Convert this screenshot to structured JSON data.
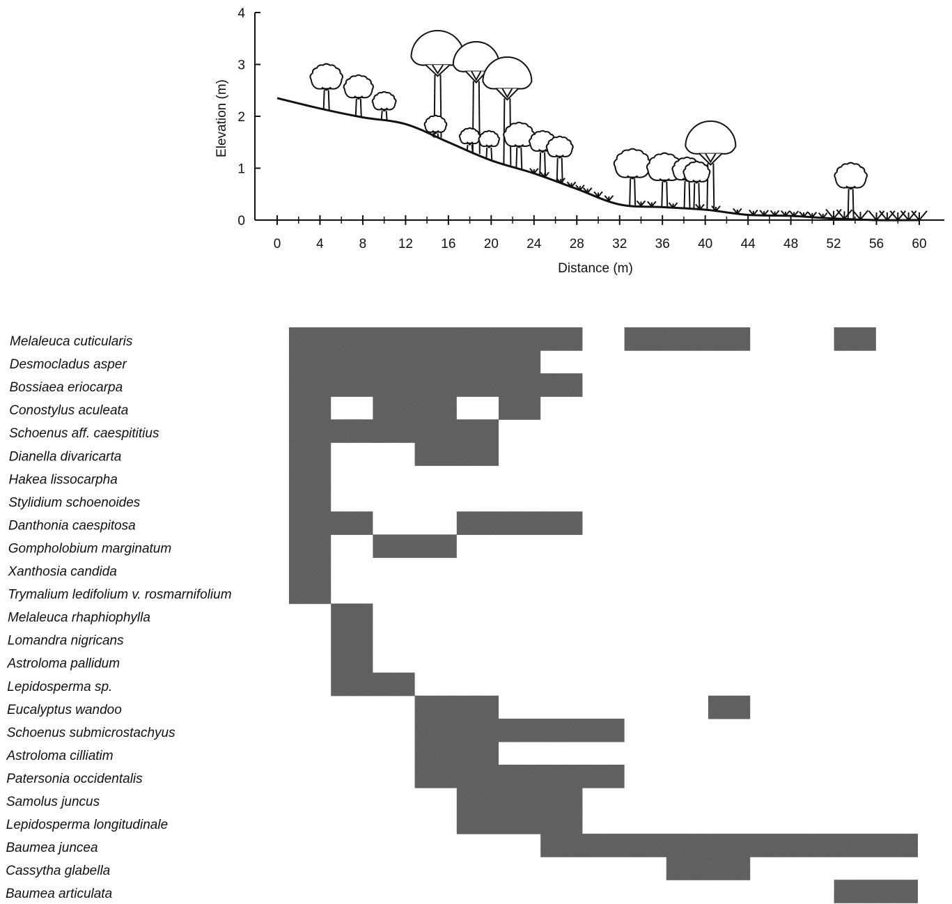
{
  "chart_data": {
    "type": "diagram",
    "profile": {
      "xlabel": "Distance (m)",
      "ylabel": "Elevation (m)",
      "xlim": [
        0,
        60
      ],
      "ylim": [
        0,
        4
      ],
      "x_ticks": [
        0,
        4,
        8,
        12,
        16,
        20,
        24,
        28,
        32,
        36,
        40,
        44,
        48,
        52,
        56,
        60
      ],
      "y_ticks": [
        0,
        1,
        2,
        3,
        4
      ],
      "ground_profile": [
        {
          "x": 0,
          "y": 2.35
        },
        {
          "x": 4,
          "y": 2.15
        },
        {
          "x": 8,
          "y": 1.98
        },
        {
          "x": 12,
          "y": 1.85
        },
        {
          "x": 16,
          "y": 1.5
        },
        {
          "x": 20,
          "y": 1.15
        },
        {
          "x": 24,
          "y": 0.9
        },
        {
          "x": 28,
          "y": 0.6
        },
        {
          "x": 32,
          "y": 0.3
        },
        {
          "x": 36,
          "y": 0.25
        },
        {
          "x": 40,
          "y": 0.2
        },
        {
          "x": 44,
          "y": 0.1
        },
        {
          "x": 48,
          "y": 0.08
        },
        {
          "x": 52,
          "y": 0.03
        },
        {
          "x": 56,
          "y": 0.0
        },
        {
          "x": 60,
          "y": 0.0
        }
      ]
    },
    "occurrence_grid": {
      "species": [
        {
          "name": "Melaleuca cuticularis",
          "segments": [
            [
              0,
              28
            ],
            [
              32,
              44
            ],
            [
              52,
              56
            ]
          ]
        },
        {
          "name": "Desmocladus asper",
          "segments": [
            [
              0,
              24
            ]
          ]
        },
        {
          "name": "Bossiaea eriocarpa",
          "segments": [
            [
              0,
              28
            ]
          ]
        },
        {
          "name": "Conostylus aculeata",
          "segments": [
            [
              0,
              4
            ],
            [
              8,
              16
            ],
            [
              20,
              24
            ]
          ]
        },
        {
          "name": "Schoenus aff. caespititius",
          "segments": [
            [
              0,
              20
            ]
          ]
        },
        {
          "name": "Dianella divaricarta",
          "segments": [
            [
              0,
              4
            ],
            [
              12,
              20
            ]
          ]
        },
        {
          "name": "Hakea lissocarpha",
          "segments": [
            [
              0,
              4
            ]
          ]
        },
        {
          "name": "Stylidium schoenoides",
          "segments": [
            [
              0,
              4
            ]
          ]
        },
        {
          "name": "Danthonia caespitosa",
          "segments": [
            [
              0,
              8
            ],
            [
              16,
              28
            ]
          ]
        },
        {
          "name": "Gompholobium marginatum",
          "segments": [
            [
              0,
              4
            ],
            [
              8,
              16
            ]
          ]
        },
        {
          "name": "Xanthosia candida",
          "segments": [
            [
              0,
              4
            ]
          ]
        },
        {
          "name": "Trymalium ledifolium v. rosmarnifolium",
          "segments": [
            [
              0,
              4
            ]
          ]
        },
        {
          "name": "Melaleuca rhaphiophylla",
          "segments": [
            [
              4,
              8
            ]
          ]
        },
        {
          "name": "Lomandra nigricans",
          "segments": [
            [
              4,
              8
            ]
          ]
        },
        {
          "name": "Astroloma pallidum",
          "segments": [
            [
              4,
              8
            ]
          ]
        },
        {
          "name": "Lepidosperma sp.",
          "segments": [
            [
              4,
              12
            ]
          ]
        },
        {
          "name": "Eucalyptus wandoo",
          "segments": [
            [
              12,
              20
            ],
            [
              40,
              44
            ]
          ]
        },
        {
          "name": "Schoenus submicrostachyus",
          "segments": [
            [
              12,
              32
            ]
          ]
        },
        {
          "name": "Astroloma cilliatim",
          "segments": [
            [
              12,
              20
            ]
          ]
        },
        {
          "name": "Patersonia occidentalis",
          "segments": [
            [
              12,
              32
            ]
          ]
        },
        {
          "name": "Samolus juncus",
          "segments": [
            [
              16,
              28
            ]
          ]
        },
        {
          "name": "Lepidosperma longitudinale",
          "segments": [
            [
              16,
              28
            ]
          ]
        },
        {
          "name": "Baumea juncea",
          "segments": [
            [
              24,
              60
            ]
          ]
        },
        {
          "name": "Cassytha glabella",
          "segments": [
            [
              36,
              44
            ]
          ]
        },
        {
          "name": "Baumea articulata",
          "segments": [
            [
              52,
              60
            ]
          ]
        }
      ]
    }
  },
  "colors": {
    "ink": "#111111",
    "bar_fill": "#6b6b6b",
    "background": "#ffffff"
  }
}
